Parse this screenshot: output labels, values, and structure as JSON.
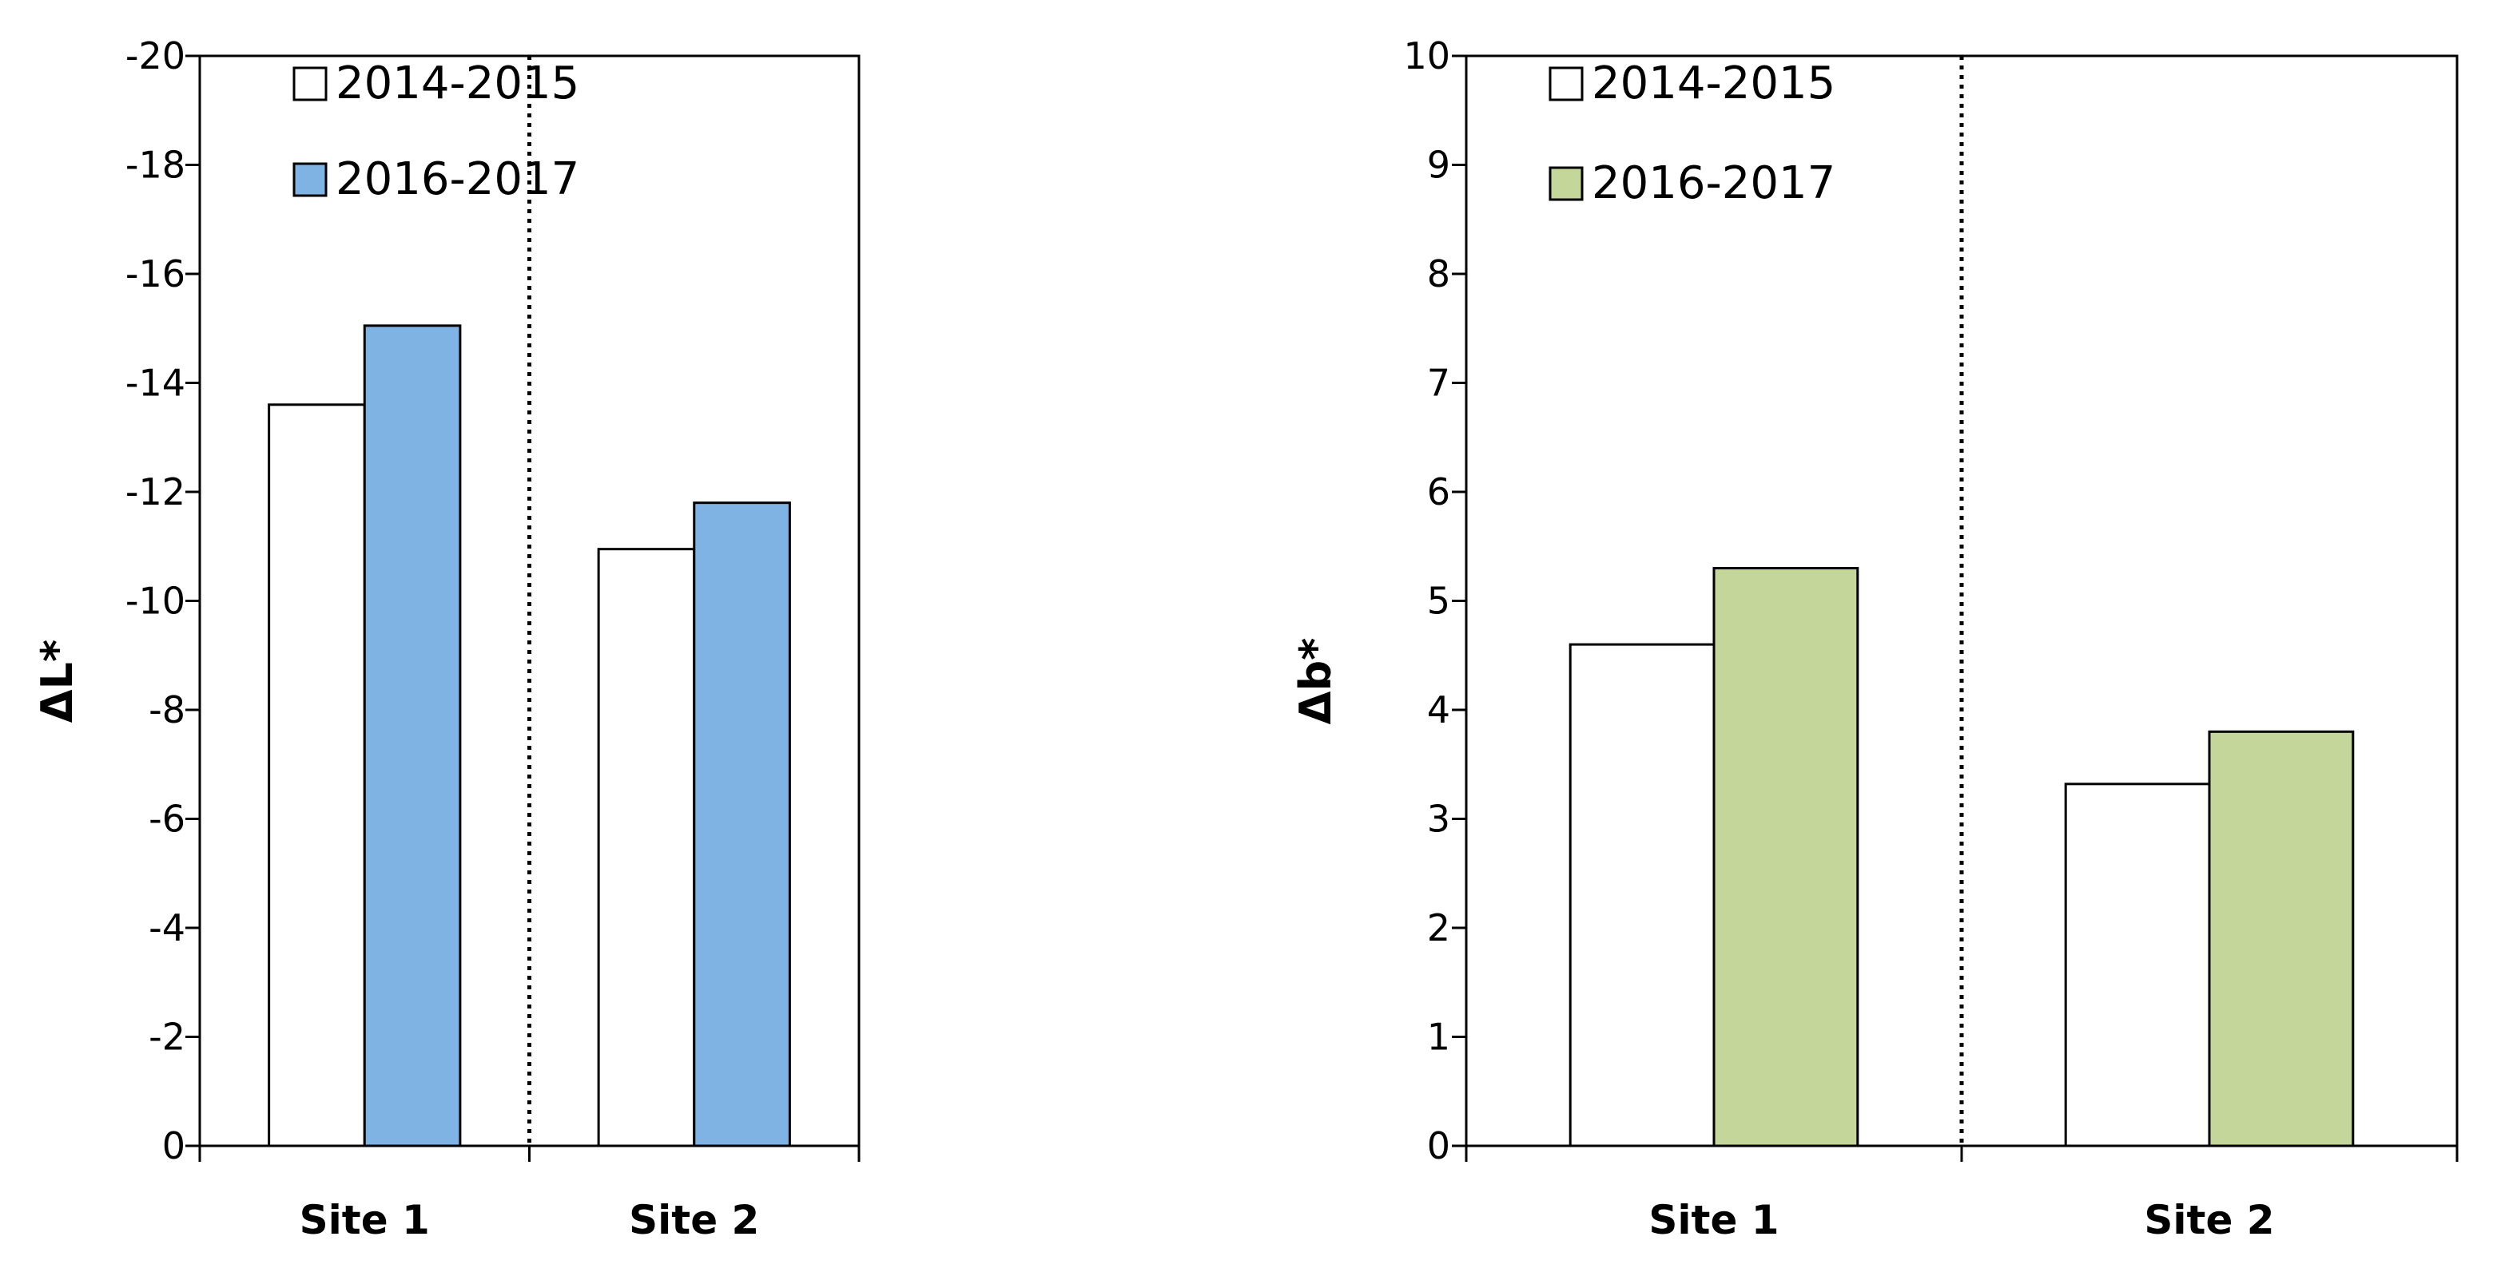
{
  "chart_data": [
    {
      "type": "bar",
      "title": "",
      "xlabel": "",
      "ylabel": "ΔL*",
      "categories": [
        "Site 1",
        "Site 2"
      ],
      "ylim": [
        0,
        -20
      ],
      "y_ticks": [
        0,
        -2,
        -4,
        -6,
        -8,
        -10,
        -12,
        -14,
        -16,
        -18,
        -20
      ],
      "y_axis_inverted": true,
      "grid": false,
      "legend_position": "top-left",
      "separator": "dotted vertical line between Site 1 and Site 2",
      "series": [
        {
          "name": "2014-2015",
          "values": [
            -13.6,
            -10.95
          ],
          "color": "#ffffff"
        },
        {
          "name": "2016-2017",
          "values": [
            -15.05,
            -11.8
          ],
          "color": "#7eb3e3"
        }
      ]
    },
    {
      "type": "bar",
      "title": "",
      "xlabel": "",
      "ylabel": "Δb*",
      "categories": [
        "Site 1",
        "Site 2"
      ],
      "ylim": [
        0,
        10
      ],
      "y_ticks": [
        0,
        1,
        2,
        3,
        4,
        5,
        6,
        7,
        8,
        9,
        10
      ],
      "y_axis_inverted": false,
      "grid": false,
      "legend_position": "top-left",
      "separator": "dotted vertical line between Site 1 and Site 2",
      "series": [
        {
          "name": "2014-2015",
          "values": [
            4.6,
            3.32
          ],
          "color": "#ffffff"
        },
        {
          "name": "2016-2017",
          "values": [
            5.3,
            3.8
          ],
          "color": "#c5d69b"
        }
      ]
    }
  ]
}
